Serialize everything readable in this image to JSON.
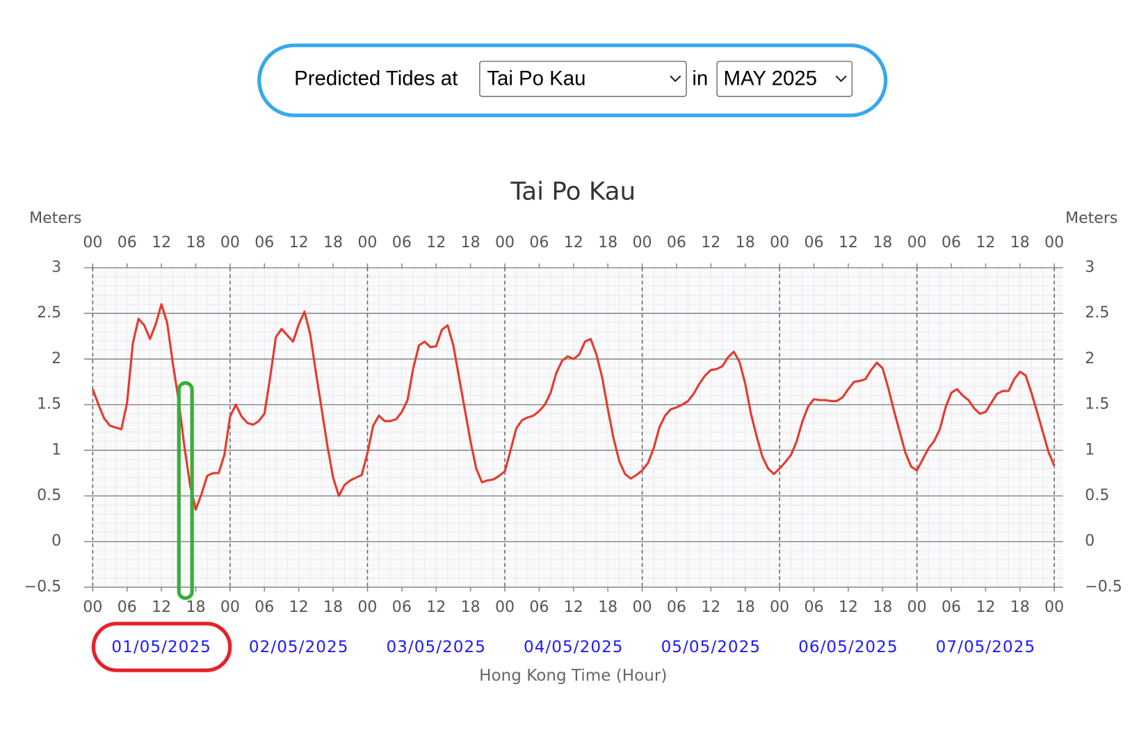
{
  "header": {
    "label": "Predicted Tides at",
    "station": "Tai Po Kau",
    "joiner": "in",
    "month": "MAY 2025"
  },
  "chart_data": {
    "type": "line",
    "title": "Tai Po Kau",
    "y_label": "Meters",
    "y2_label": "Meters",
    "x_label": "Hong Kong Time (Hour)",
    "dates": [
      "01/05/2025",
      "02/05/2025",
      "03/05/2025",
      "04/05/2025",
      "05/05/2025",
      "06/05/2025",
      "07/05/2025"
    ],
    "color": "#e8392b",
    "grid": true,
    "xlim": [
      0,
      168
    ],
    "ylim": [
      -0.5,
      3
    ],
    "y2lim": [
      -0.5,
      3
    ],
    "yticks": [
      {
        "value": -0.5,
        "label": "−0.5"
      },
      0,
      0.5,
      1,
      1.5,
      2,
      2.5,
      3
    ],
    "y2ticks": [
      {
        "value": -0.5,
        "label": "−0.5"
      },
      0,
      0.5,
      1,
      1.5,
      2,
      2.5,
      3
    ],
    "xticks": [
      {
        "value": 0,
        "label": "00"
      },
      {
        "value": 6,
        "label": "06"
      },
      {
        "value": 12,
        "label": "12"
      },
      {
        "value": 18,
        "label": "18"
      },
      {
        "value": 24,
        "label": "00"
      },
      {
        "value": 30,
        "label": "06"
      },
      {
        "value": 36,
        "label": "12"
      },
      {
        "value": 42,
        "label": "18"
      },
      {
        "value": 48,
        "label": "00"
      },
      {
        "value": 54,
        "label": "06"
      },
      {
        "value": 60,
        "label": "12"
      },
      {
        "value": 66,
        "label": "18"
      },
      {
        "value": 72,
        "label": "00"
      },
      {
        "value": 78,
        "label": "06"
      },
      {
        "value": 84,
        "label": "12"
      },
      {
        "value": 90,
        "label": "18"
      },
      {
        "value": 96,
        "label": "00"
      },
      {
        "value": 102,
        "label": "06"
      },
      {
        "value": 108,
        "label": "12"
      },
      {
        "value": 114,
        "label": "18"
      },
      {
        "value": 120,
        "label": "00"
      },
      {
        "value": 126,
        "label": "06"
      },
      {
        "value": 132,
        "label": "12"
      },
      {
        "value": 138,
        "label": "18"
      },
      {
        "value": 144,
        "label": "00"
      },
      {
        "value": 150,
        "label": "06"
      },
      {
        "value": 156,
        "label": "12"
      },
      {
        "value": 162,
        "label": "18"
      },
      {
        "value": 168,
        "label": "00"
      }
    ],
    "x": [
      0,
      1,
      2,
      3,
      4,
      5,
      6,
      7,
      8,
      9,
      10,
      11,
      12,
      13,
      14,
      15,
      16,
      17,
      18,
      19,
      20,
      21,
      22,
      23,
      24,
      25,
      26,
      27,
      28,
      29,
      30,
      31,
      32,
      33,
      34,
      35,
      36,
      37,
      38,
      39,
      40,
      41,
      42,
      43,
      44,
      45,
      46,
      47,
      48,
      49,
      50,
      51,
      52,
      53,
      54,
      55,
      56,
      57,
      58,
      59,
      60,
      61,
      62,
      63,
      64,
      65,
      66,
      67,
      68,
      69,
      70,
      71,
      72,
      73,
      74,
      75,
      76,
      77,
      78,
      79,
      80,
      81,
      82,
      83,
      84,
      85,
      86,
      87,
      88,
      89,
      90,
      91,
      92,
      93,
      94,
      95,
      96,
      97,
      98,
      99,
      100,
      101,
      102,
      103,
      104,
      105,
      106,
      107,
      108,
      109,
      110,
      111,
      112,
      113,
      114,
      115,
      116,
      117,
      118,
      119,
      120,
      121,
      122,
      123,
      124,
      125,
      126,
      127,
      128,
      129,
      130,
      131,
      132,
      133,
      134,
      135,
      136,
      137,
      138,
      139,
      140,
      141,
      142,
      143,
      144,
      145,
      146,
      147,
      148,
      149,
      150,
      151,
      152,
      153,
      154,
      155,
      156,
      157,
      158,
      159,
      160,
      161,
      162,
      163,
      164,
      165,
      166,
      167,
      168
    ],
    "values": [
      1.67,
      1.5,
      1.35,
      1.27,
      1.25,
      1.23,
      1.52,
      2.17,
      2.44,
      2.37,
      2.22,
      2.38,
      2.6,
      2.4,
      1.95,
      1.55,
      1.05,
      0.62,
      0.35,
      0.52,
      0.72,
      0.75,
      0.75,
      0.95,
      1.37,
      1.5,
      1.37,
      1.3,
      1.28,
      1.32,
      1.4,
      1.8,
      2.24,
      2.33,
      2.26,
      2.19,
      2.38,
      2.52,
      2.27,
      1.85,
      1.45,
      1.05,
      0.7,
      0.5,
      0.62,
      0.67,
      0.7,
      0.73,
      0.97,
      1.27,
      1.38,
      1.32,
      1.32,
      1.34,
      1.42,
      1.55,
      1.9,
      2.15,
      2.19,
      2.13,
      2.14,
      2.32,
      2.37,
      2.15,
      1.8,
      1.45,
      1.1,
      0.8,
      0.65,
      0.67,
      0.68,
      0.72,
      0.77,
      1.0,
      1.24,
      1.33,
      1.36,
      1.38,
      1.43,
      1.5,
      1.63,
      1.85,
      1.98,
      2.03,
      2.0,
      2.05,
      2.19,
      2.22,
      2.05,
      1.8,
      1.45,
      1.13,
      0.88,
      0.74,
      0.69,
      0.73,
      0.78,
      0.86,
      1.02,
      1.25,
      1.38,
      1.45,
      1.47,
      1.5,
      1.54,
      1.62,
      1.73,
      1.82,
      1.88,
      1.89,
      1.92,
      2.02,
      2.08,
      1.97,
      1.73,
      1.4,
      1.15,
      0.93,
      0.8,
      0.74,
      0.8,
      0.87,
      0.95,
      1.1,
      1.32,
      1.48,
      1.56,
      1.55,
      1.55,
      1.54,
      1.54,
      1.58,
      1.67,
      1.75,
      1.76,
      1.78,
      1.88,
      1.96,
      1.9,
      1.68,
      1.43,
      1.2,
      0.97,
      0.82,
      0.78,
      0.9,
      1.02,
      1.1,
      1.23,
      1.47,
      1.63,
      1.67,
      1.6,
      1.55,
      1.46,
      1.4,
      1.42,
      1.52,
      1.62,
      1.65,
      1.65,
      1.78,
      1.86,
      1.82,
      1.63,
      1.42,
      1.2,
      0.98,
      0.83
    ]
  }
}
